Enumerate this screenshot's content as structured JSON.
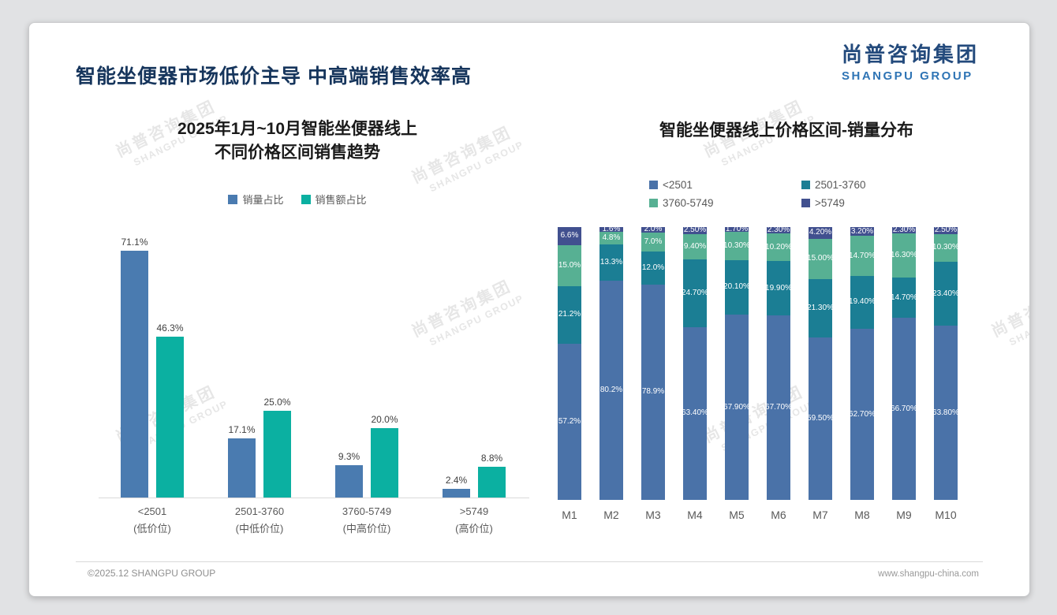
{
  "header": {
    "title": "智能坐便器市场低价主导 中高端销售效率高",
    "logo": {
      "cn": "尚普咨询集团",
      "en": "SHANGPU GROUP"
    }
  },
  "watermark": {
    "line1": "尚普咨询集团",
    "line2": "SHANGPU GROUP"
  },
  "footer": {
    "copyright": "©2025.12 SHANGPU GROUP",
    "website": "www.shangpu-china.com"
  },
  "colors": {
    "header_navy": "#16355c",
    "logo_blue": "#2e74b5",
    "left_bar_blue": "#4a7bb0",
    "left_bar_teal": "#0bb0a1"
  },
  "chart_data": [
    {
      "type": "bar",
      "title": "2025年1月~10月智能坐便器线上 不同价格区间销售趋势",
      "title_lines": [
        "2025年1月~10月智能坐便器线上",
        "不同价格区间销售趋势"
      ],
      "categories": [
        "<2501",
        "2501-3760",
        "3760-5749",
        ">5749"
      ],
      "category_sublabels": [
        "(低价位)",
        "(中低价位)",
        "(中高价位)",
        "(高价位)"
      ],
      "xlabel": "",
      "ylabel": "",
      "ylim": [
        0,
        100
      ],
      "grid": false,
      "legend_position": "top",
      "series": [
        {
          "name": "销量占比",
          "color": "#4a7bb0",
          "values": [
            71.1,
            17.1,
            9.3,
            2.4
          ],
          "labels": [
            "71.1%",
            "17.1%",
            "9.3%",
            "2.4%"
          ]
        },
        {
          "name": "销售额占比",
          "color": "#0bb0a1",
          "values": [
            46.3,
            25.0,
            20.0,
            8.8
          ],
          "labels": [
            "46.3%",
            "25.0%",
            "20.0%",
            "8.8%"
          ]
        }
      ]
    },
    {
      "type": "bar",
      "stacked": true,
      "title": "智能坐便器线上价格区间-销量分布",
      "categories": [
        "M1",
        "M2",
        "M3",
        "M4",
        "M5",
        "M6",
        "M7",
        "M8",
        "M9",
        "M10"
      ],
      "xlabel": "",
      "ylabel": "",
      "ylim": [
        0,
        100
      ],
      "grid": false,
      "legend_position": "top",
      "series": [
        {
          "name": "<2501",
          "color": "#4a72a8",
          "values": [
            57.2,
            80.2,
            78.9,
            63.4,
            67.9,
            67.7,
            59.5,
            62.7,
            66.7,
            63.8
          ],
          "labels": [
            "57.2%",
            "80.2%",
            "78.9%",
            "63.40%",
            "67.90%",
            "67.70%",
            "59.50%",
            "62.70%",
            "66.70%",
            "63.80%"
          ]
        },
        {
          "name": "2501-3760",
          "color": "#1b7e94",
          "values": [
            21.2,
            13.3,
            12.0,
            24.7,
            20.1,
            19.9,
            21.3,
            19.4,
            14.7,
            23.4
          ],
          "labels": [
            "21.2%",
            "13.3%",
            "12.0%",
            "24.70%",
            "20.10%",
            "19.90%",
            "21.30%",
            "19.40%",
            "14.70%",
            "23.40%"
          ]
        },
        {
          "name": "3760-5749",
          "color": "#57b093",
          "values": [
            15.0,
            4.8,
            7.0,
            9.4,
            10.3,
            10.2,
            15.0,
            14.7,
            16.3,
            10.3
          ],
          "labels": [
            "15.0%",
            "4.8%",
            "7.0%",
            "9.40%",
            "10.30%",
            "10.20%",
            "15.00%",
            "14.70%",
            "16.30%",
            "10.30%"
          ]
        },
        {
          "name": ">5749",
          "color": "#41508f",
          "values": [
            6.6,
            1.6,
            2.0,
            2.5,
            1.7,
            2.3,
            4.2,
            3.2,
            2.3,
            2.5
          ],
          "labels": [
            "6.6%",
            "1.6%",
            "2.0%",
            "2.50%",
            "1.70%",
            "2.30%",
            "4.20%",
            "3.20%",
            "2.30%",
            "2.50%"
          ]
        }
      ]
    }
  ]
}
